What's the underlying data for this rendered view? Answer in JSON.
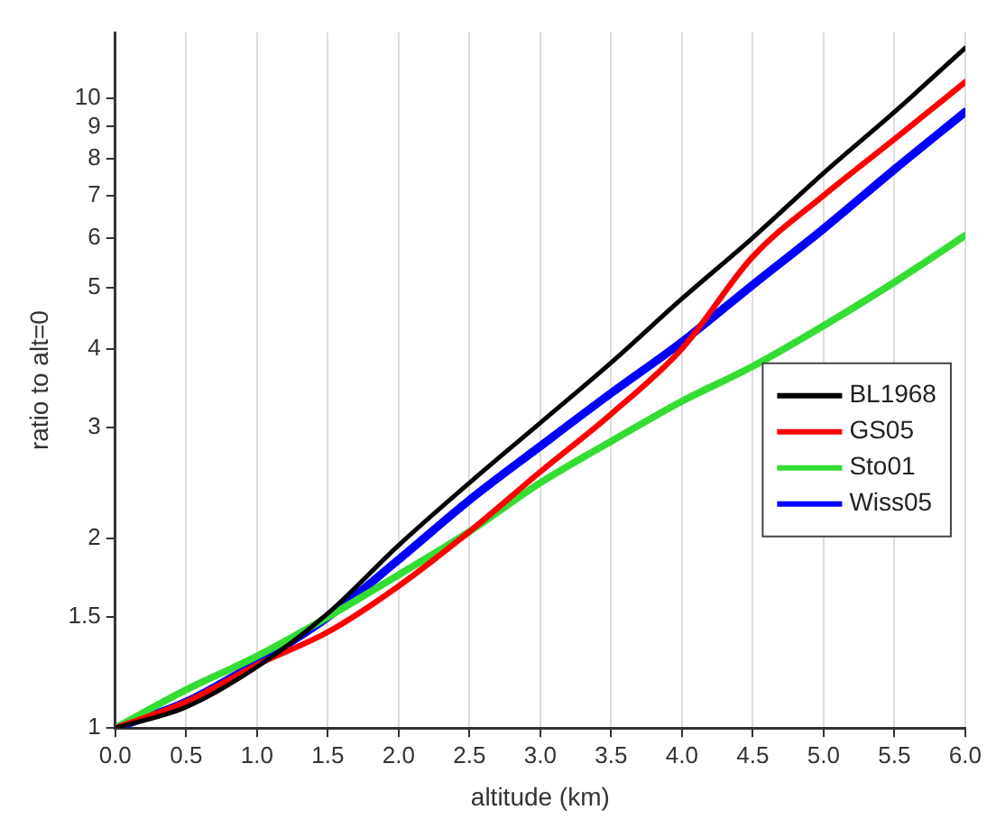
{
  "chart_data": {
    "type": "line",
    "xlabel": "altitude (km)",
    "ylabel": "ratio to alt=0",
    "x": [
      0,
      0.5,
      1,
      1.5,
      2,
      2.5,
      3,
      3.5,
      4,
      4.5,
      5,
      5.5,
      6
    ],
    "series": [
      {
        "name": "BL1968",
        "color": "#000000",
        "values": [
          1,
          1.08,
          1.25,
          1.52,
          1.95,
          2.45,
          3.05,
          3.8,
          4.8,
          6.0,
          7.6,
          9.5,
          12.0
        ]
      },
      {
        "name": "GS05",
        "color": "#ff0000",
        "values": [
          1,
          1.1,
          1.26,
          1.42,
          1.68,
          2.05,
          2.55,
          3.15,
          4.0,
          5.6,
          7.0,
          8.6,
          10.6
        ]
      },
      {
        "name": "Sto01",
        "color": "#33dd33",
        "values": [
          1,
          1.15,
          1.3,
          1.5,
          1.75,
          2.05,
          2.45,
          2.85,
          3.3,
          3.75,
          4.35,
          5.1,
          6.05
        ]
      },
      {
        "name": "Wiss05",
        "color": "#0000ff",
        "values": [
          1,
          1.1,
          1.27,
          1.5,
          1.85,
          2.3,
          2.8,
          3.4,
          4.1,
          5.05,
          6.2,
          7.7,
          9.5
        ]
      }
    ],
    "xlim": [
      0,
      6
    ],
    "xticks": [
      {
        "value": 0,
        "label": "0.0"
      },
      {
        "value": 0.5,
        "label": "0.5"
      },
      {
        "value": 1,
        "label": "1.0"
      },
      {
        "value": 1.5,
        "label": "1.5"
      },
      {
        "value": 2,
        "label": "2.0"
      },
      {
        "value": 2.5,
        "label": "2.5"
      },
      {
        "value": 3,
        "label": "3.0"
      },
      {
        "value": 3.5,
        "label": "3.5"
      },
      {
        "value": 4,
        "label": "4.0"
      },
      {
        "value": 4.5,
        "label": "4.5"
      },
      {
        "value": 5,
        "label": "5.0"
      },
      {
        "value": 5.5,
        "label": "5.5"
      },
      {
        "value": 6,
        "label": "6.0"
      }
    ],
    "ylim": [
      1,
      12.7
    ],
    "yticks": [
      1,
      1.5,
      2,
      3,
      4,
      5,
      6,
      7,
      8,
      9,
      10
    ],
    "log": "y",
    "grid": "x",
    "legend": "right",
    "marker": "none",
    "line_style": "solid"
  }
}
